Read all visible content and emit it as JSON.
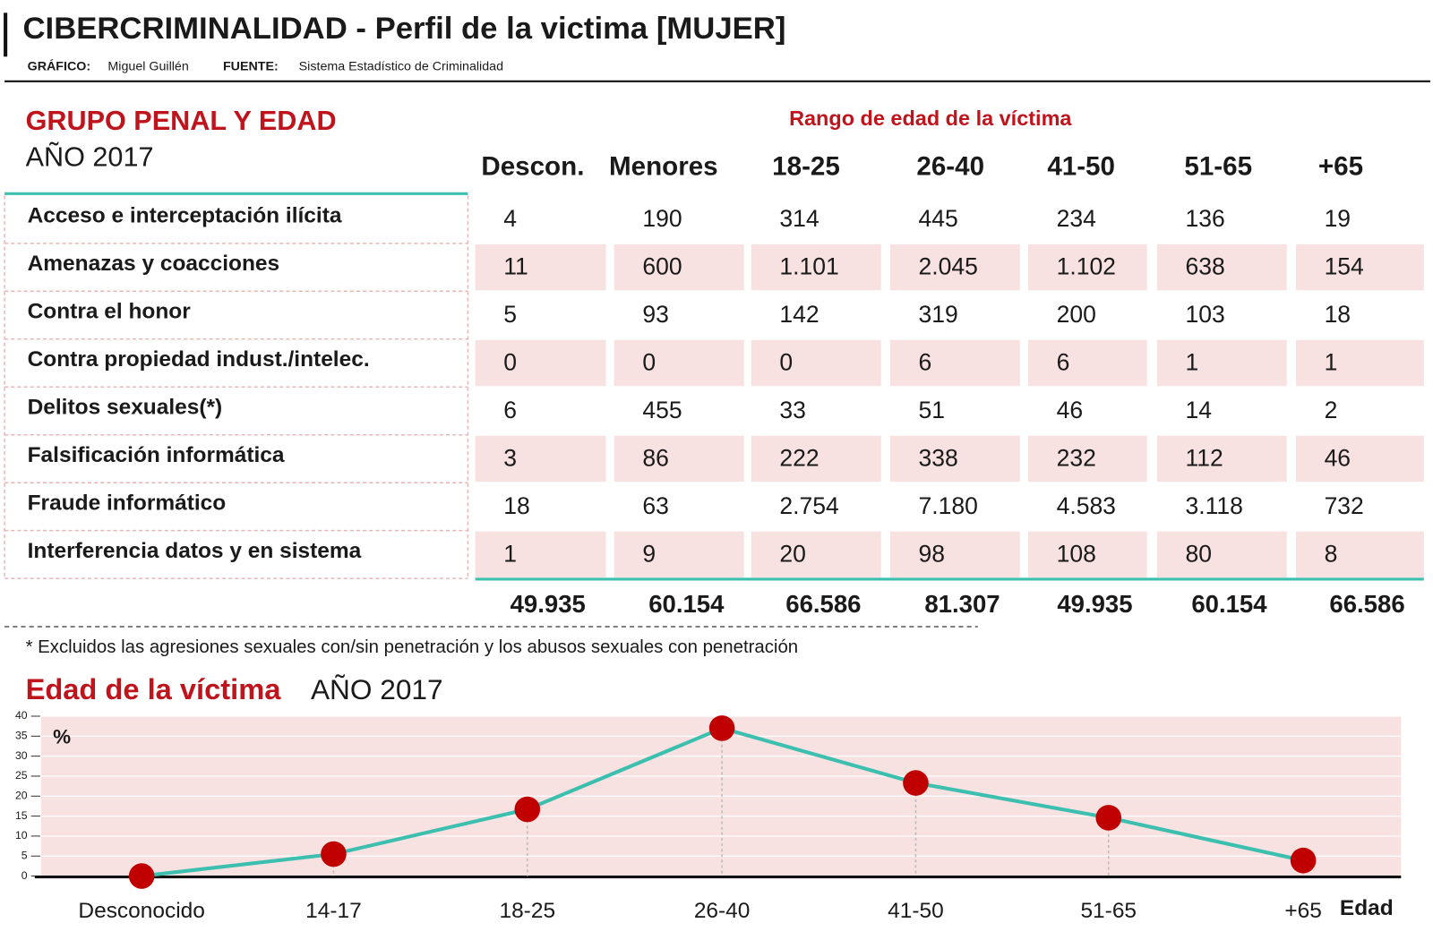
{
  "header": {
    "title": "CIBERCRIMINALIDAD - Perfil de la victima [MUJER]",
    "credit_label": "GRÁFICO:",
    "credit": "Miguel Guillén",
    "source_label": "FUENTE:",
    "source": "Sistema Estadístico de Criminalidad"
  },
  "table": {
    "title": "GRUPO PENAL Y EDAD",
    "subtitle": "AÑO 2017",
    "group_header": "Rango de edad de la víctima",
    "columns": [
      "Descon.",
      "Menores",
      "18-25",
      "26-40",
      "41-50",
      "51-65",
      "+65"
    ],
    "rows": [
      {
        "label": "Acceso e interceptación ilícita",
        "values": [
          "4",
          "190",
          "314",
          "445",
          "234",
          "136",
          "19"
        ]
      },
      {
        "label": "Amenazas y coacciones",
        "values": [
          "11",
          "600",
          "1.101",
          "2.045",
          "1.102",
          "638",
          "154"
        ]
      },
      {
        "label": "Contra el honor",
        "values": [
          "5",
          "93",
          "142",
          "319",
          "200",
          "103",
          "18"
        ]
      },
      {
        "label": "Contra propiedad indust./intelec.",
        "values": [
          "0",
          "0",
          "0",
          "6",
          "6",
          "1",
          "1"
        ]
      },
      {
        "label": "Delitos sexuales(*)",
        "values": [
          "6",
          "455",
          "33",
          "51",
          "46",
          "14",
          "2"
        ]
      },
      {
        "label": "Falsificación informática",
        "values": [
          "3",
          "86",
          "222",
          "338",
          "232",
          "112",
          "46"
        ]
      },
      {
        "label": "Fraude informático",
        "values": [
          "18",
          "63",
          "2.754",
          "7.180",
          "4.583",
          "3.118",
          "732"
        ]
      },
      {
        "label": "Interferencia datos y en sistema",
        "values": [
          "1",
          "9",
          "20",
          "98",
          "108",
          "80",
          "8"
        ]
      }
    ],
    "totals": [
      "49.935",
      "60.154",
      "66.586",
      "81.307",
      "49.935",
      "60.154",
      "66.586"
    ],
    "footnote": "* Excluidos las agresiones sexuales con/sin penetración y los abusos sexuales con penetración"
  },
  "chart_data": {
    "type": "line",
    "title": "Edad de la víctima",
    "subtitle": "AÑO 2017",
    "y_label": "%",
    "x_label": "Edad",
    "categories": [
      "Desconocido",
      "14-17",
      "18-25",
      "26-40",
      "41-50",
      "51-65",
      "+65"
    ],
    "series": [
      {
        "name": "Edad de la víctima",
        "color": "#3dbfb0",
        "marker_color": "#c00000",
        "values": [
          0,
          5.5,
          16.7,
          37,
          23.3,
          14.6,
          3.9
        ]
      }
    ],
    "ylim": [
      0,
      40
    ],
    "yticks": [
      0,
      5,
      10,
      15,
      20,
      25,
      30,
      35,
      40
    ],
    "grid": true
  }
}
